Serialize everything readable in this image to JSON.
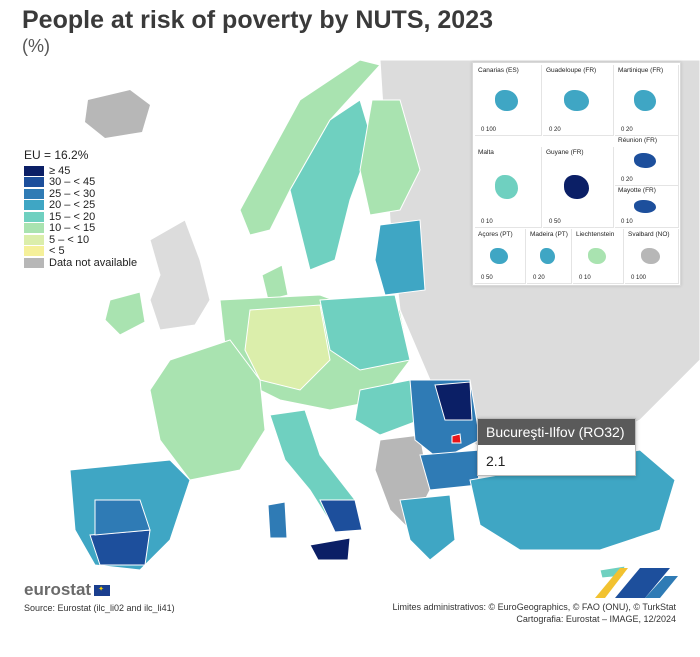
{
  "header": {
    "title": "People at risk of poverty by NUTS, 2023",
    "subtitle": "(%)"
  },
  "legend": {
    "eu_value": "EU = 16.2%",
    "items": [
      {
        "label": "≥ 45",
        "color": "#0b1f66"
      },
      {
        "label": "30 – < 45",
        "color": "#1d4f9c"
      },
      {
        "label": "25 – < 30",
        "color": "#2f7bb5"
      },
      {
        "label": "20 – < 25",
        "color": "#3fa6c4"
      },
      {
        "label": "15 – < 20",
        "color": "#6fd0c0"
      },
      {
        "label": "10 – < 15",
        "color": "#a9e3b0"
      },
      {
        "label": "5 – < 10",
        "color": "#dbeeab"
      },
      {
        "label": "< 5",
        "color": "#f5f09a"
      },
      {
        "label": "Data not available",
        "color": "#b7b7b7"
      }
    ]
  },
  "insets": [
    {
      "label": "Canarias (ES)",
      "scale": "0  100"
    },
    {
      "label": "Guadeloupe (FR)",
      "scale": "0  20"
    },
    {
      "label": "Martinique (FR)",
      "scale": "0  20"
    },
    {
      "label": "Réunion (FR)",
      "scale": "0  20"
    },
    {
      "label": "Malta",
      "scale": "0  10"
    },
    {
      "label": "Guyane (FR)",
      "scale": "0  50"
    },
    {
      "label": "Mayotte (FR)",
      "scale": "0  10"
    },
    {
      "label": "Açores (PT)",
      "scale": "0  50"
    },
    {
      "label": "Madeira (PT)",
      "scale": "0  20"
    },
    {
      "label": "Liechtenstein",
      "scale": "0  10"
    },
    {
      "label": "Svalbard (NO)",
      "scale": "0  100"
    }
  ],
  "tooltip": {
    "region": "Bucureşti-Ilfov (RO32)",
    "value": "2.1"
  },
  "footer": {
    "logo": "eurostat",
    "source": "Source: Eurostat (ilc_li02 and ilc_li41)",
    "credits_line1": "Limites administrativos: © EuroGeographics, © FAO (ONU), © TurkStat",
    "credits_line2": "Cartografia: Eurostat – IMAGE, 12/2024"
  }
}
